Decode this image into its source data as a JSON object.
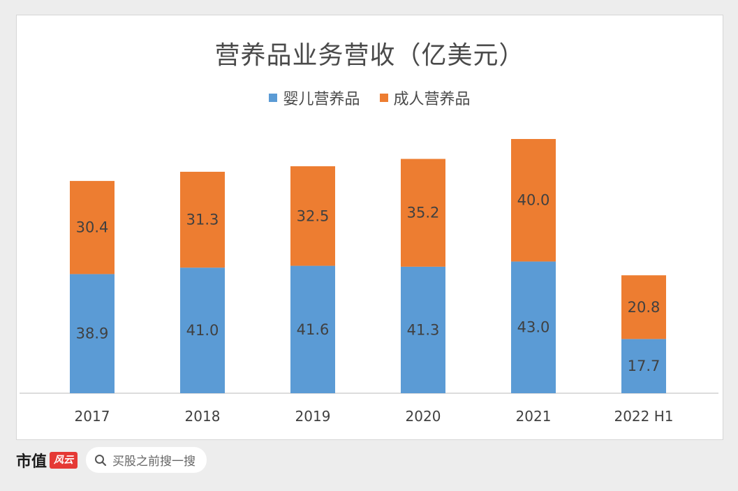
{
  "chart_data": {
    "type": "bar",
    "stacked": true,
    "title": "营养品业务营收（亿美元）",
    "categories": [
      "2017",
      "2018",
      "2019",
      "2020",
      "2021",
      "2022 H1"
    ],
    "series": [
      {
        "name": "婴儿营养品",
        "color": "#5b9bd5",
        "values": [
          38.9,
          41.0,
          41.6,
          41.3,
          43.0,
          17.7
        ]
      },
      {
        "name": "成人营养品",
        "color": "#ed7d31",
        "values": [
          30.4,
          31.3,
          32.5,
          35.2,
          40.0,
          20.8
        ]
      }
    ],
    "ylim": [
      0,
      96
    ],
    "grid": false,
    "legend_position": "top"
  },
  "footer": {
    "brand": "市值",
    "brand_logo": "风云",
    "search_placeholder": "买股之前搜一搜"
  }
}
